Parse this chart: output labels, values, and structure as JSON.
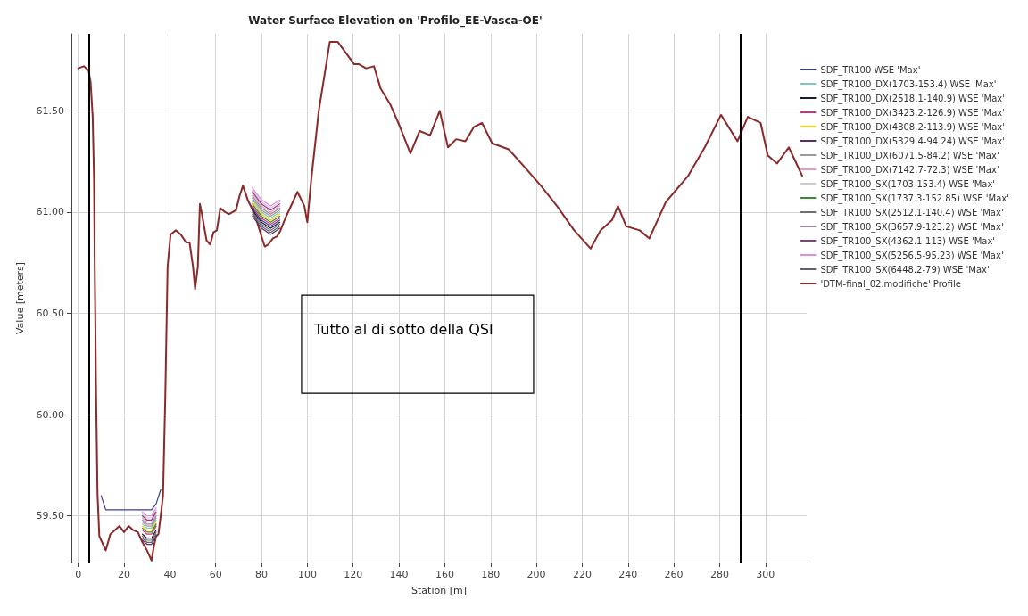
{
  "chart_data": {
    "type": "line",
    "title": "Water Surface Elevation on 'Profilo_EE-Vasca-OE'",
    "xlabel": "Station [m]",
    "ylabel": "Value [meters]",
    "annotations": [
      "Tutto al di sotto della QSI"
    ],
    "xlim": [
      -3,
      318
    ],
    "ylim": [
      59.27,
      61.88
    ],
    "xticks": [
      0,
      20,
      40,
      60,
      80,
      100,
      120,
      140,
      160,
      180,
      200,
      220,
      240,
      260,
      280,
      300
    ],
    "yticks": [
      {
        "value": 59.5,
        "label": "59.50"
      },
      {
        "value": 60,
        "label": "60.00"
      },
      {
        "value": 60.5,
        "label": "60.50"
      },
      {
        "value": 61,
        "label": "61.00"
      },
      {
        "value": 61.5,
        "label": "61.50"
      }
    ],
    "grid": true,
    "legend": "right",
    "marker": "none",
    "line_style": "solid",
    "ref_lines": [
      {
        "axis": "x",
        "value": 4.5,
        "color": "#000000"
      },
      {
        "axis": "x",
        "value": 289,
        "color": "#000000"
      }
    ],
    "x": [
      10,
      12,
      20,
      28,
      30,
      32,
      34,
      36,
      44,
      76,
      80,
      84,
      88
    ],
    "series": [
      {
        "name": "SDF_TR100 WSE 'Max'",
        "color": "#3b3f8f",
        "values": [
          59.6,
          59.53,
          59.53,
          59.53,
          59.53,
          59.53,
          59.56,
          59.63,
          null,
          61.02,
          60.96,
          60.93,
          60.96
        ]
      },
      {
        "name": "SDF_TR100_DX(1703-153.4) WSE 'Max'",
        "color": "#7fc8c0",
        "values": [
          null,
          null,
          null,
          59.46,
          59.44,
          59.44,
          59.48,
          null,
          null,
          61.06,
          61.0,
          60.97,
          61.0
        ]
      },
      {
        "name": "SDF_TR100_DX(2518.1-140.9) WSE 'Max'",
        "color": "#1a1a3a",
        "values": [
          null,
          null,
          null,
          59.41,
          59.39,
          59.39,
          59.43,
          null,
          null,
          61.01,
          60.95,
          60.92,
          60.95
        ]
      },
      {
        "name": "SDF_TR100_DX(3423.2-126.9) WSE 'Max'",
        "color": "#d4307a",
        "values": [
          null,
          null,
          null,
          59.43,
          59.41,
          59.41,
          59.45,
          null,
          null,
          61.03,
          60.97,
          60.94,
          60.97
        ]
      },
      {
        "name": "SDF_TR100_DX(4308.2-113.9) WSE 'Max'",
        "color": "#f2d21b",
        "values": [
          null,
          null,
          null,
          59.45,
          59.43,
          59.43,
          59.47,
          null,
          null,
          61.05,
          60.99,
          60.96,
          60.99
        ]
      },
      {
        "name": "SDF_TR100_DX(5329.4-94.24) WSE 'Max'",
        "color": "#5a2a6a",
        "values": [
          null,
          null,
          null,
          59.38,
          59.36,
          59.36,
          59.4,
          null,
          null,
          60.98,
          60.92,
          60.89,
          60.92
        ]
      },
      {
        "name": "SDF_TR100_DX(6071.5-84.2) WSE 'Max'",
        "color": "#9a9a9a",
        "values": [
          null,
          null,
          null,
          59.47,
          59.45,
          59.45,
          59.49,
          null,
          null,
          61.07,
          61.01,
          60.98,
          61.01
        ]
      },
      {
        "name": "SDF_TR100_DX(7142.7-72.3) WSE 'Max'",
        "color": "#e89ac0",
        "values": [
          null,
          null,
          null,
          59.49,
          59.47,
          59.47,
          59.51,
          null,
          null,
          61.09,
          61.03,
          61.0,
          61.03
        ]
      },
      {
        "name": "SDF_TR100_SX(1703-153.4) WSE 'Max'",
        "color": "#cccccc",
        "values": [
          null,
          null,
          null,
          59.51,
          59.49,
          59.49,
          59.53,
          null,
          null,
          61.11,
          61.05,
          61.02,
          61.05
        ]
      },
      {
        "name": "SDF_TR100_SX(1737.3-152.85) WSE 'Max'",
        "color": "#3a8a3a",
        "values": [
          null,
          null,
          null,
          59.44,
          59.42,
          59.42,
          59.46,
          null,
          null,
          61.04,
          60.98,
          60.95,
          60.98
        ]
      },
      {
        "name": "SDF_TR100_SX(2512.1-140.4) WSE 'Max'",
        "color": "#707070",
        "values": [
          null,
          null,
          null,
          59.4,
          59.38,
          59.38,
          59.42,
          null,
          null,
          61.0,
          60.94,
          60.91,
          60.94
        ]
      },
      {
        "name": "SDF_TR100_SX(3657.9-123.2) WSE 'Max'",
        "color": "#9a8a9a",
        "values": [
          null,
          null,
          null,
          59.48,
          59.46,
          59.46,
          59.5,
          null,
          null,
          61.08,
          61.02,
          60.99,
          61.02
        ]
      },
      {
        "name": "SDF_TR100_SX(4362.1-113) WSE 'Max'",
        "color": "#8a3a8a",
        "values": [
          null,
          null,
          null,
          59.5,
          59.48,
          59.48,
          59.52,
          null,
          null,
          61.1,
          61.04,
          61.01,
          61.04
        ]
      },
      {
        "name": "SDF_TR100_SX(5256.5-95.23) WSE 'Max'",
        "color": "#e08ae0",
        "values": [
          null,
          null,
          null,
          59.52,
          59.5,
          59.5,
          59.54,
          null,
          null,
          61.12,
          61.06,
          61.03,
          61.06
        ]
      },
      {
        "name": "SDF_TR100_SX(6448.2-79) WSE 'Max'",
        "color": "#606070",
        "values": [
          null,
          null,
          null,
          59.39,
          59.37,
          59.37,
          59.41,
          null,
          null,
          60.99,
          60.93,
          60.9,
          60.93
        ]
      },
      {
        "name": "'DTM-final_02.modifiche' Profile",
        "color": "#8b2a2a",
        "x": [
          0,
          2.4,
          4.5,
          5.4,
          6.3,
          6.9,
          7.2,
          7.8,
          8.4,
          9.2,
          12,
          14,
          18,
          20,
          22,
          24,
          26,
          28,
          30,
          32,
          33,
          34,
          35,
          36,
          37,
          38,
          39,
          40.3,
          42.6,
          44.7,
          47.1,
          48.6,
          50.1,
          51,
          52.2,
          53.1,
          54,
          56,
          57.6,
          59,
          60.5,
          62,
          64.1,
          65.9,
          68.9,
          70.4,
          71.9,
          74,
          77,
          80,
          81.4,
          82.9,
          85,
          86.8,
          88.3,
          90.4,
          95.7,
          98.7,
          100,
          101.7,
          105,
          109.8,
          113.3,
          120.5,
          122.6,
          125.6,
          129.1,
          132,
          136.3,
          140.5,
          145,
          149,
          153.6,
          157.8,
          161.4,
          165,
          169,
          172.7,
          176.3,
          180.7,
          187.9,
          195,
          202,
          209,
          216.5,
          223.7,
          228,
          233,
          235.6,
          239.2,
          245.1,
          249.3,
          256.5,
          266.3,
          273.5,
          280.6,
          287.8,
          292.3,
          297.9,
          301,
          305.1,
          310.2,
          316
        ],
        "values": [
          61.71,
          61.72,
          61.7,
          61.64,
          61.47,
          61.16,
          60.73,
          60.09,
          59.61,
          59.4,
          59.33,
          59.41,
          59.45,
          59.42,
          59.45,
          59.43,
          59.42,
          59.37,
          59.33,
          59.28,
          59.35,
          59.4,
          59.41,
          59.5,
          59.6,
          60.09,
          60.73,
          60.89,
          60.91,
          60.89,
          60.85,
          60.85,
          60.73,
          60.62,
          60.73,
          61.04,
          60.99,
          60.86,
          60.84,
          60.9,
          60.91,
          61.02,
          61.0,
          60.99,
          61.01,
          61.08,
          61.13,
          61.06,
          60.99,
          60.88,
          60.83,
          60.84,
          60.87,
          60.88,
          60.91,
          60.97,
          61.1,
          61.03,
          60.95,
          61.16,
          61.5,
          61.84,
          61.84,
          61.73,
          61.73,
          61.71,
          61.72,
          61.61,
          61.53,
          61.42,
          61.29,
          61.4,
          61.38,
          61.5,
          61.32,
          61.36,
          61.35,
          61.42,
          61.44,
          61.34,
          61.31,
          61.22,
          61.13,
          61.03,
          60.91,
          60.82,
          60.91,
          60.96,
          61.03,
          60.93,
          60.91,
          60.87,
          61.05,
          61.18,
          61.32,
          61.48,
          61.35,
          61.47,
          61.44,
          61.28,
          61.24,
          61.32,
          61.18
        ]
      }
    ]
  }
}
